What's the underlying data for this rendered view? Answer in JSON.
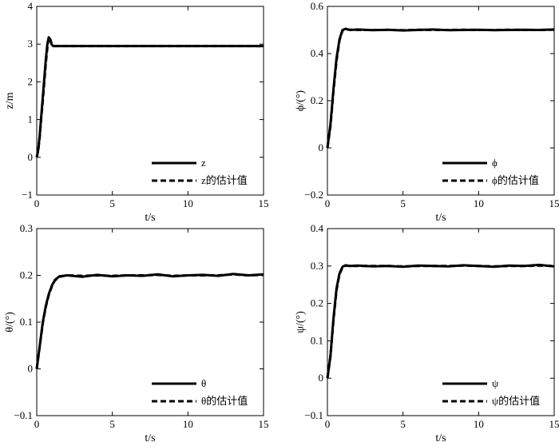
{
  "chart_data": [
    {
      "type": "line",
      "xlabel": "t/s",
      "ylabel": "z/m",
      "xlim": [
        0,
        15
      ],
      "ylim": [
        -1,
        4
      ],
      "xticks": [
        "0",
        "5",
        "10",
        "15"
      ],
      "yticks": [
        "−1",
        "0",
        "1",
        "2",
        "3",
        "4"
      ],
      "legend_position": "bottom-right",
      "series": [
        {
          "name": "z",
          "style": "solid",
          "x": [
            0,
            0.1,
            0.2,
            0.3,
            0.4,
            0.5,
            0.6,
            0.7,
            0.8,
            0.9,
            1.0,
            1.1,
            1.2,
            1.5,
            2,
            5,
            10,
            15
          ],
          "y": [
            0,
            0.2,
            0.6,
            1.1,
            1.6,
            2.1,
            2.6,
            3.0,
            3.18,
            3.1,
            2.98,
            2.95,
            2.95,
            2.95,
            2.95,
            2.95,
            2.95,
            2.95
          ]
        },
        {
          "name": "z的估计值",
          "style": "dashed",
          "x": [
            0,
            0.1,
            0.2,
            0.3,
            0.4,
            0.5,
            0.6,
            0.7,
            0.8,
            0.9,
            1.0,
            1.1,
            1.2,
            1.5,
            2,
            5,
            10,
            15
          ],
          "y": [
            0,
            0.18,
            0.55,
            1.05,
            1.5,
            2.0,
            2.5,
            2.9,
            3.2,
            3.12,
            3.0,
            2.95,
            2.95,
            2.95,
            2.95,
            2.95,
            2.95,
            2.95
          ]
        }
      ]
    },
    {
      "type": "line",
      "xlabel": "t/s",
      "ylabel": "ϕ/(°)",
      "xlim": [
        0,
        15
      ],
      "ylim": [
        -0.2,
        0.6
      ],
      "xticks": [
        "0",
        "5",
        "10",
        "15"
      ],
      "yticks": [
        "−0.2",
        "0",
        "0.2",
        "0.4",
        "0.6"
      ],
      "legend_position": "bottom-right",
      "series": [
        {
          "name": "ϕ",
          "style": "solid",
          "x": [
            0,
            0.2,
            0.4,
            0.6,
            0.8,
            1.0,
            1.2,
            1.5,
            2,
            3,
            4,
            5,
            6,
            7,
            8,
            9,
            10,
            11,
            12,
            13,
            14,
            15
          ],
          "y": [
            0,
            0.1,
            0.25,
            0.38,
            0.46,
            0.5,
            0.505,
            0.5,
            0.502,
            0.499,
            0.501,
            0.498,
            0.5,
            0.502,
            0.499,
            0.5,
            0.501,
            0.499,
            0.5,
            0.501,
            0.5,
            0.502
          ]
        },
        {
          "name": "ϕ的估计值",
          "style": "dashed",
          "x": [
            0,
            0.2,
            0.4,
            0.6,
            0.8,
            1.0,
            1.2,
            1.5,
            2,
            3,
            4,
            5,
            6,
            7,
            8,
            9,
            10,
            11,
            12,
            13,
            14,
            15
          ],
          "y": [
            0,
            0.09,
            0.24,
            0.37,
            0.455,
            0.498,
            0.503,
            0.501,
            0.5,
            0.5,
            0.5,
            0.499,
            0.501,
            0.5,
            0.5,
            0.501,
            0.5,
            0.5,
            0.501,
            0.5,
            0.5,
            0.501
          ]
        }
      ]
    },
    {
      "type": "line",
      "xlabel": "t/s",
      "ylabel": "θ/(°)",
      "xlim": [
        0,
        15
      ],
      "ylim": [
        -0.1,
        0.3
      ],
      "xticks": [
        "0",
        "5",
        "10",
        "15"
      ],
      "yticks": [
        "−0.1",
        "0",
        "0.1",
        "0.2",
        "0.3"
      ],
      "legend_position": "bottom-right",
      "series": [
        {
          "name": "θ",
          "style": "solid",
          "x": [
            0,
            0.2,
            0.4,
            0.6,
            0.8,
            1.0,
            1.2,
            1.5,
            2,
            3,
            4,
            5,
            6,
            7,
            8,
            9,
            10,
            11,
            12,
            13,
            14,
            15
          ],
          "y": [
            0,
            0.05,
            0.1,
            0.135,
            0.16,
            0.178,
            0.19,
            0.198,
            0.2,
            0.197,
            0.201,
            0.198,
            0.2,
            0.199,
            0.202,
            0.198,
            0.2,
            0.201,
            0.199,
            0.203,
            0.2,
            0.202
          ]
        },
        {
          "name": "θ的估计值",
          "style": "dashed",
          "x": [
            0,
            0.2,
            0.4,
            0.6,
            0.8,
            1.0,
            1.2,
            1.5,
            2,
            3,
            4,
            5,
            6,
            7,
            8,
            9,
            10,
            11,
            12,
            13,
            14,
            15
          ],
          "y": [
            0,
            0.048,
            0.098,
            0.133,
            0.158,
            0.176,
            0.189,
            0.197,
            0.2,
            0.199,
            0.2,
            0.199,
            0.2,
            0.2,
            0.201,
            0.199,
            0.2,
            0.2,
            0.2,
            0.202,
            0.2,
            0.201
          ]
        }
      ]
    },
    {
      "type": "line",
      "xlabel": "t/s",
      "ylabel": "ψ/(°)",
      "xlim": [
        0,
        15
      ],
      "ylim": [
        -0.1,
        0.4
      ],
      "xticks": [
        "0",
        "5",
        "10",
        "15"
      ],
      "yticks": [
        "−0.1",
        "0",
        "0.1",
        "0.2",
        "0.3",
        "0.4"
      ],
      "legend_position": "bottom-right",
      "series": [
        {
          "name": "ψ",
          "style": "solid",
          "x": [
            0,
            0.2,
            0.4,
            0.6,
            0.8,
            1.0,
            1.2,
            1.5,
            2,
            3,
            4,
            5,
            6,
            7,
            8,
            9,
            10,
            11,
            12,
            13,
            14,
            15
          ],
          "y": [
            0,
            0.06,
            0.16,
            0.24,
            0.28,
            0.298,
            0.302,
            0.3,
            0.301,
            0.299,
            0.3,
            0.298,
            0.301,
            0.3,
            0.299,
            0.302,
            0.3,
            0.298,
            0.301,
            0.3,
            0.303,
            0.299
          ]
        },
        {
          "name": "ψ的估计值",
          "style": "dashed",
          "x": [
            0,
            0.2,
            0.4,
            0.6,
            0.8,
            1.0,
            1.2,
            1.5,
            2,
            3,
            4,
            5,
            6,
            7,
            8,
            9,
            10,
            11,
            12,
            13,
            14,
            15
          ],
          "y": [
            0,
            0.058,
            0.155,
            0.235,
            0.278,
            0.296,
            0.301,
            0.3,
            0.3,
            0.3,
            0.3,
            0.299,
            0.3,
            0.3,
            0.3,
            0.301,
            0.3,
            0.299,
            0.3,
            0.3,
            0.301,
            0.3
          ]
        }
      ]
    }
  ]
}
